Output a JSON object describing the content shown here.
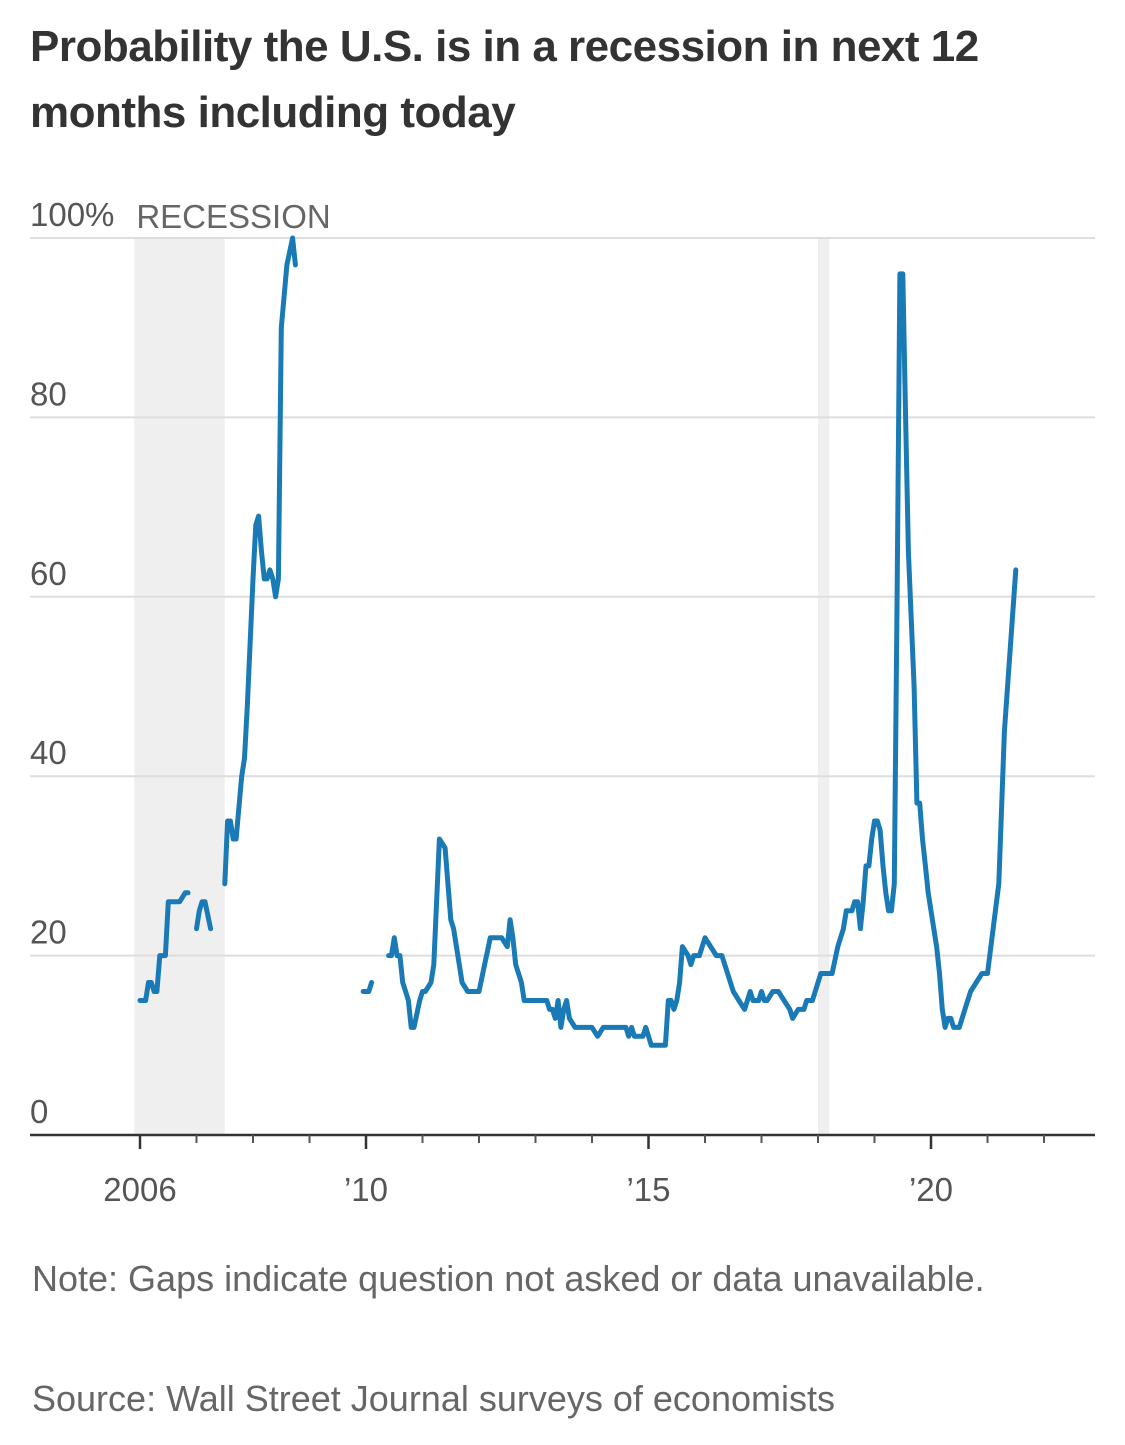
{
  "chart_data": {
    "type": "line",
    "title": "Probability the U.S. is in a recession in next 12 months including today",
    "y_unit_label": "100%",
    "ylim": [
      0,
      100
    ],
    "xlim": [
      2006.0,
      2022.9
    ],
    "y_ticks": [
      {
        "value": 0,
        "label": "0"
      },
      {
        "value": 20,
        "label": "20"
      },
      {
        "value": 40,
        "label": "40"
      },
      {
        "value": 60,
        "label": "60"
      },
      {
        "value": 80,
        "label": "80"
      },
      {
        "value": 100,
        "label": "100%"
      }
    ],
    "x_ticks": [
      {
        "value": 2008,
        "label": "2006"
      },
      {
        "value": 2012,
        "label": "'10"
      },
      {
        "value": 2017,
        "label": "'15"
      },
      {
        "value": 2022,
        "label": "'20"
      }
    ],
    "grid": true,
    "recession_label": "RECESSION",
    "recessions": [
      [
        2007.9,
        2009.5
      ],
      [
        2020.0,
        2020.2
      ]
    ],
    "color": "#1a7ab5",
    "series": [
      {
        "segments": [
          [
            [
              2008.0,
              15
            ],
            [
              2008.1,
              15
            ],
            [
              2008.15,
              17
            ],
            [
              2008.2,
              17
            ],
            [
              2008.25,
              16
            ],
            [
              2008.3,
              16
            ],
            [
              2008.35,
              20
            ],
            [
              2008.4,
              20
            ],
            [
              2008.45,
              20
            ],
            [
              2008.5,
              26
            ],
            [
              2008.6,
              26
            ],
            [
              2008.7,
              26
            ],
            [
              2008.8,
              27
            ],
            [
              2008.85,
              27
            ]
          ],
          [
            [
              2009.0,
              23
            ],
            [
              2009.05,
              25
            ],
            [
              2009.1,
              26
            ],
            [
              2009.15,
              26
            ],
            [
              2009.25,
              23
            ]
          ],
          [
            [
              2009.5,
              28
            ],
            [
              2009.55,
              35
            ],
            [
              2009.6,
              35
            ],
            [
              2009.65,
              33
            ],
            [
              2009.7,
              33
            ],
            [
              2009.8,
              40
            ],
            [
              2009.85,
              42
            ],
            [
              2009.9,
              48
            ],
            [
              2009.95,
              55
            ],
            [
              2010.0,
              62
            ],
            [
              2010.05,
              68
            ],
            [
              2010.1,
              69
            ],
            [
              2010.15,
              65
            ],
            [
              2010.2,
              62
            ],
            [
              2010.25,
              62
            ],
            [
              2010.3,
              63
            ],
            [
              2010.35,
              62
            ],
            [
              2010.4,
              60
            ],
            [
              2010.45,
              62
            ],
            [
              2010.5,
              90
            ],
            [
              2010.6,
              97
            ],
            [
              2010.7,
              100
            ],
            [
              2010.75,
              97
            ]
          ],
          [
            [
              2011.95,
              16
            ],
            [
              2012.05,
              16
            ],
            [
              2012.1,
              17
            ]
          ],
          [
            [
              2012.4,
              20
            ],
            [
              2012.45,
              20
            ],
            [
              2012.5,
              22
            ],
            [
              2012.55,
              20
            ],
            [
              2012.6,
              20
            ],
            [
              2012.65,
              17
            ],
            [
              2012.7,
              16
            ],
            [
              2012.75,
              15
            ],
            [
              2012.8,
              12
            ],
            [
              2012.85,
              12
            ],
            [
              2012.95,
              15
            ],
            [
              2013.0,
              16
            ],
            [
              2013.05,
              16
            ],
            [
              2013.15,
              17
            ],
            [
              2013.2,
              19
            ],
            [
              2013.3,
              33
            ],
            [
              2013.4,
              32
            ],
            [
              2013.5,
              24
            ],
            [
              2013.55,
              23
            ],
            [
              2013.7,
              17
            ],
            [
              2013.8,
              16
            ],
            [
              2013.9,
              16
            ],
            [
              2014.0,
              16
            ],
            [
              2014.1,
              19
            ],
            [
              2014.2,
              22
            ],
            [
              2014.3,
              22
            ],
            [
              2014.4,
              22
            ],
            [
              2014.5,
              21
            ],
            [
              2014.55,
              24
            ],
            [
              2014.6,
              22
            ],
            [
              2014.65,
              19
            ],
            [
              2014.75,
              17
            ],
            [
              2014.8,
              15
            ],
            [
              2014.9,
              15
            ],
            [
              2015.0,
              15
            ],
            [
              2015.1,
              15
            ],
            [
              2015.2,
              15
            ],
            [
              2015.25,
              14
            ],
            [
              2015.3,
              14
            ],
            [
              2015.35,
              13
            ],
            [
              2015.4,
              15
            ],
            [
              2015.45,
              12
            ],
            [
              2015.5,
              14
            ],
            [
              2015.55,
              15
            ],
            [
              2015.6,
              13
            ],
            [
              2015.7,
              12
            ],
            [
              2015.8,
              12
            ],
            [
              2015.9,
              12
            ],
            [
              2016.0,
              12
            ],
            [
              2016.1,
              11
            ],
            [
              2016.2,
              12
            ],
            [
              2016.3,
              12
            ],
            [
              2016.4,
              12
            ],
            [
              2016.5,
              12
            ],
            [
              2016.6,
              12
            ],
            [
              2016.65,
              11
            ],
            [
              2016.7,
              12
            ],
            [
              2016.75,
              11
            ],
            [
              2016.8,
              11
            ],
            [
              2016.9,
              11
            ],
            [
              2016.95,
              12
            ],
            [
              2017.0,
              11
            ],
            [
              2017.05,
              10
            ],
            [
              2017.1,
              10
            ],
            [
              2017.2,
              10
            ],
            [
              2017.3,
              10
            ],
            [
              2017.35,
              15
            ],
            [
              2017.4,
              15
            ],
            [
              2017.45,
              14
            ],
            [
              2017.5,
              15
            ],
            [
              2017.55,
              17
            ],
            [
              2017.6,
              21
            ],
            [
              2017.7,
              20
            ],
            [
              2017.75,
              19
            ],
            [
              2017.8,
              20
            ],
            [
              2017.9,
              20
            ],
            [
              2018.0,
              22
            ],
            [
              2018.1,
              21
            ],
            [
              2018.2,
              20
            ],
            [
              2018.3,
              20
            ],
            [
              2018.4,
              18
            ],
            [
              2018.5,
              16
            ],
            [
              2018.6,
              15
            ],
            [
              2018.7,
              14
            ],
            [
              2018.75,
              15
            ],
            [
              2018.8,
              16
            ],
            [
              2018.85,
              15
            ],
            [
              2018.9,
              15
            ],
            [
              2018.95,
              15
            ],
            [
              2019.0,
              16
            ],
            [
              2019.05,
              15
            ],
            [
              2019.1,
              15
            ],
            [
              2019.2,
              16
            ],
            [
              2019.3,
              16
            ],
            [
              2019.4,
              15
            ],
            [
              2019.5,
              14
            ],
            [
              2019.55,
              13
            ],
            [
              2019.65,
              14
            ],
            [
              2019.75,
              14
            ],
            [
              2019.8,
              15
            ],
            [
              2019.9,
              15
            ],
            [
              2019.95,
              16
            ],
            [
              2020.0,
              17
            ],
            [
              2020.05,
              18
            ],
            [
              2020.15,
              18
            ],
            [
              2020.25,
              18
            ],
            [
              2020.35,
              21
            ],
            [
              2020.45,
              23
            ],
            [
              2020.5,
              25
            ],
            [
              2020.6,
              25
            ],
            [
              2020.65,
              26
            ],
            [
              2020.7,
              26
            ],
            [
              2020.75,
              23
            ],
            [
              2020.8,
              26
            ],
            [
              2020.85,
              30
            ],
            [
              2020.9,
              30
            ],
            [
              2020.95,
              33
            ],
            [
              2021.0,
              35
            ],
            [
              2021.05,
              35
            ],
            [
              2021.1,
              34
            ],
            [
              2021.15,
              30
            ],
            [
              2021.2,
              27
            ],
            [
              2021.25,
              25
            ],
            [
              2021.3,
              25
            ],
            [
              2021.35,
              28
            ],
            [
              2021.4,
              60
            ],
            [
              2021.45,
              96
            ],
            [
              2021.5,
              96
            ],
            [
              2021.55,
              80
            ],
            [
              2021.6,
              65
            ],
            [
              2021.7,
              50
            ],
            [
              2021.75,
              37
            ],
            [
              2021.8,
              37
            ],
            [
              2021.85,
              33
            ],
            [
              2021.9,
              30
            ],
            [
              2021.95,
              27
            ],
            [
              2022.0,
              25
            ],
            [
              2022.05,
              23
            ],
            [
              2022.1,
              21
            ],
            [
              2022.15,
              18
            ],
            [
              2022.2,
              14
            ],
            [
              2022.25,
              12
            ],
            [
              2022.3,
              13
            ],
            [
              2022.35,
              13
            ],
            [
              2022.4,
              12
            ],
            [
              2022.5,
              12
            ],
            [
              2022.6,
              14
            ],
            [
              2022.7,
              16
            ],
            [
              2022.8,
              17
            ],
            [
              2022.9,
              18
            ],
            [
              2023.0,
              18
            ],
            [
              2023.2,
              28
            ],
            [
              2023.3,
              45
            ],
            [
              2023.5,
              63
            ]
          ]
        ]
      }
    ]
  },
  "note": "Note: Gaps indicate question not asked or data unavailable.",
  "source": "Source: Wall Street Journal surveys of economists"
}
